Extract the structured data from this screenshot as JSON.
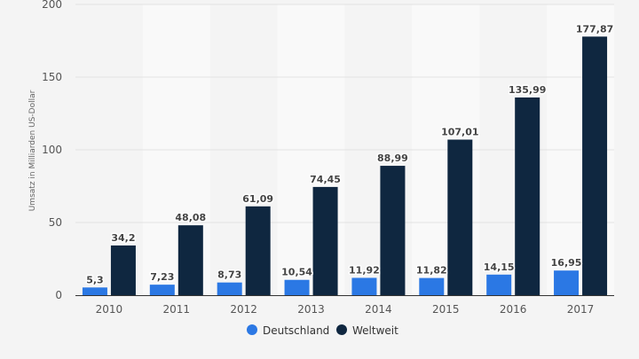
{
  "colors": {
    "deutschland": "#2b78e4",
    "weltweit": "#0f2740",
    "background": "#f4f4f4",
    "band": "#f9f9f9",
    "grid": "#e2e2e2",
    "axis": "#333333"
  },
  "chart_data": {
    "type": "bar",
    "title": "",
    "xlabel": "",
    "ylabel": "Umsatz in Milliarden US-Dollar",
    "ylim": [
      0,
      200
    ],
    "yticks": [
      "0",
      "50",
      "100",
      "150",
      "200"
    ],
    "categories": [
      "2010",
      "2011",
      "2012",
      "2013",
      "2014",
      "2015",
      "2016",
      "2017"
    ],
    "series": [
      {
        "name": "Deutschland",
        "values": [
          5.3,
          7.23,
          8.73,
          10.54,
          11.92,
          11.82,
          14.15,
          16.95
        ],
        "labels": [
          "5,3",
          "7,23",
          "8,73",
          "10,54",
          "11,92",
          "11,82",
          "14,15",
          "16,95"
        ]
      },
      {
        "name": "Weltweit",
        "values": [
          34.2,
          48.08,
          61.09,
          74.45,
          88.99,
          107.01,
          135.99,
          177.87
        ],
        "labels": [
          "34,2",
          "48,08",
          "61,09",
          "74,45",
          "88,99",
          "107,01",
          "135,99",
          "177,87"
        ]
      }
    ],
    "legend": {
      "position": "bottom-center",
      "items": [
        "Deutschland",
        "Weltweit"
      ]
    },
    "grid": true
  }
}
